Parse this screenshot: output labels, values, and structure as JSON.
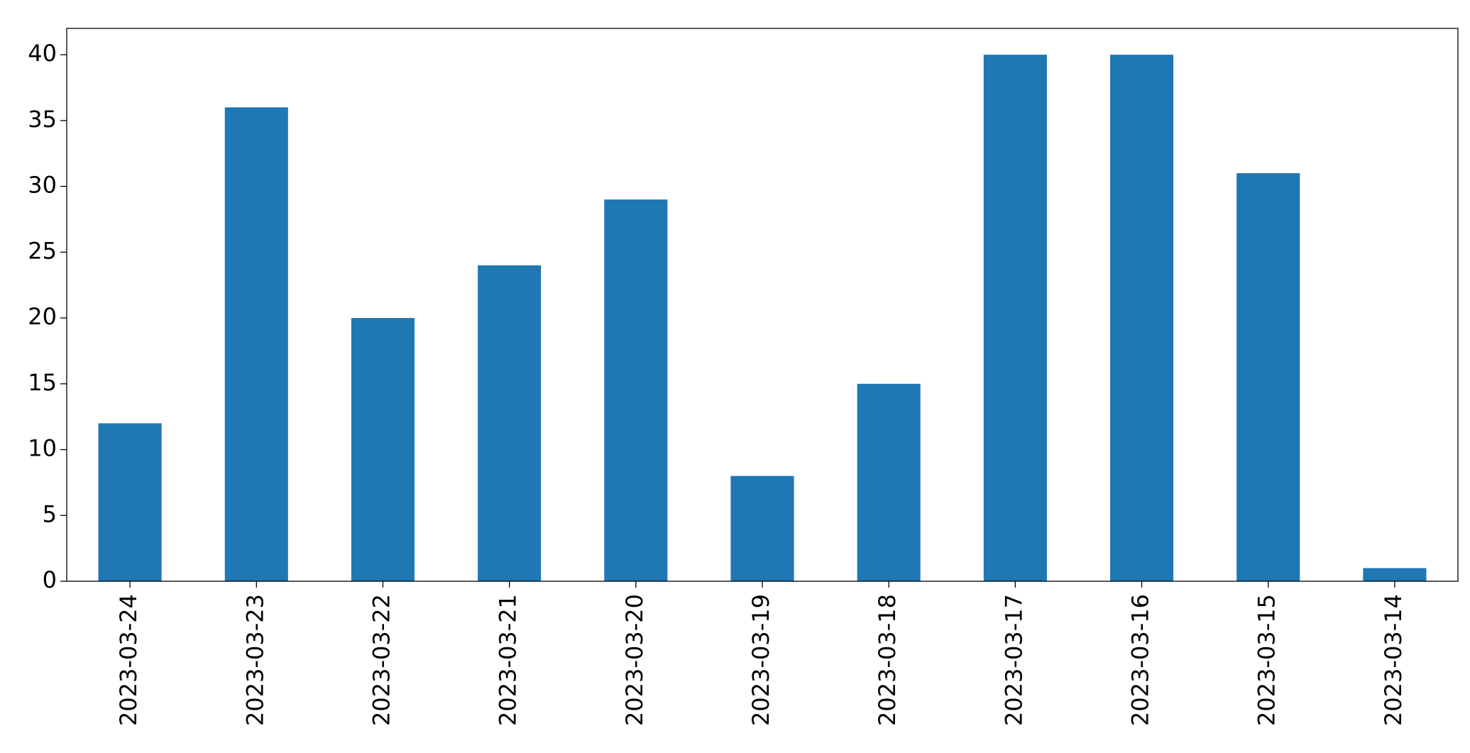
{
  "chart_data": {
    "type": "bar",
    "categories": [
      "2023-03-24",
      "2023-03-23",
      "2023-03-22",
      "2023-03-21",
      "2023-03-20",
      "2023-03-19",
      "2023-03-18",
      "2023-03-17",
      "2023-03-16",
      "2023-03-15",
      "2023-03-14"
    ],
    "values": [
      12,
      36,
      20,
      24,
      29,
      8,
      15,
      40,
      40,
      31,
      1
    ],
    "color": "#1f77b4",
    "ylim": [
      0,
      42
    ],
    "yticks": [
      0,
      5,
      10,
      15,
      20,
      25,
      30,
      35,
      40
    ],
    "grid": false
  }
}
